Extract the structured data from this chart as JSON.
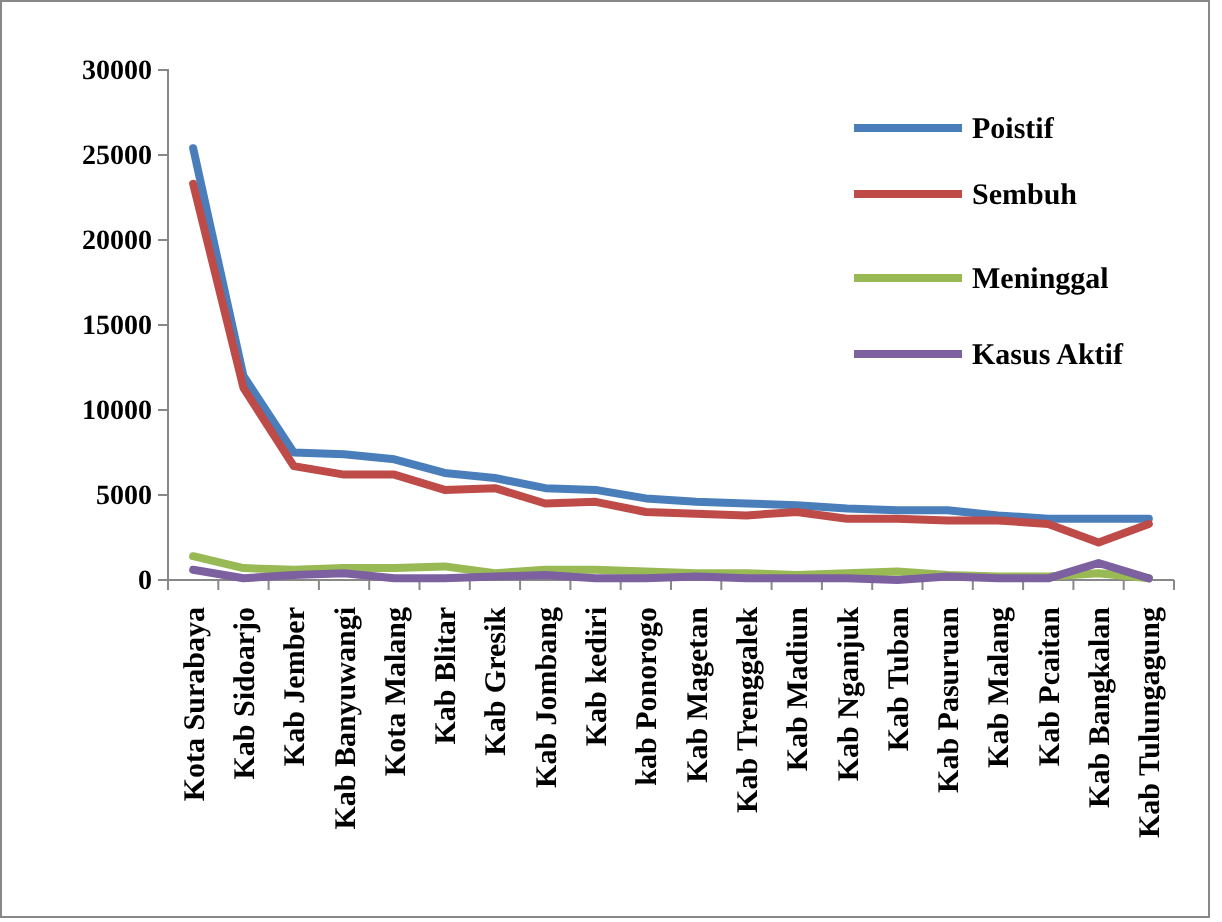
{
  "chart_data": {
    "type": "line",
    "categories": [
      "Kota Surabaya",
      "Kab Sidoarjo",
      "Kab Jember",
      "Kab Banyuwangi",
      "Kota Malang",
      "Kab Blitar",
      "Kab Gresik",
      "Kab Jombang",
      "Kab kediri",
      "kab Ponorogo",
      "Kab Magetan",
      "Kab Trenggalek",
      "Kab Madiun",
      "Kab Nganjuk",
      "Kab Tuban",
      "Kab Pasuruan",
      "Kab Malang",
      "Kab Pcaitan",
      "Kab Bangkalan",
      "Kab Tulungagung"
    ],
    "series": [
      {
        "name": "Poistif",
        "color": "#4a7ebb",
        "values": [
          25400,
          12000,
          7500,
          7400,
          7100,
          6300,
          6000,
          5400,
          5300,
          4800,
          4600,
          4500,
          4400,
          4200,
          4100,
          4100,
          3800,
          3600,
          3600,
          3600
        ]
      },
      {
        "name": "Sembuh",
        "color": "#be4b48",
        "values": [
          23300,
          11300,
          6700,
          6200,
          6200,
          5300,
          5400,
          4500,
          4600,
          4000,
          3900,
          3800,
          4000,
          3600,
          3600,
          3500,
          3500,
          3300,
          2200,
          3300
        ]
      },
      {
        "name": "Meninggal",
        "color": "#98b954",
        "values": [
          1400,
          700,
          600,
          700,
          700,
          800,
          400,
          600,
          600,
          500,
          400,
          400,
          300,
          400,
          500,
          300,
          200,
          200,
          400,
          100
        ]
      },
      {
        "name": "Kasus Aktif",
        "color": "#7d60a0",
        "values": [
          600,
          100,
          300,
          400,
          100,
          100,
          200,
          300,
          100,
          100,
          200,
          100,
          100,
          100,
          0,
          200,
          100,
          100,
          1000,
          100
        ]
      }
    ],
    "ylim": [
      0,
      30000
    ],
    "yticks": [
      0,
      5000,
      10000,
      15000,
      20000,
      25000,
      30000
    ],
    "grid": false,
    "legend": "top right",
    "marker": "none",
    "line_style": "solid"
  }
}
